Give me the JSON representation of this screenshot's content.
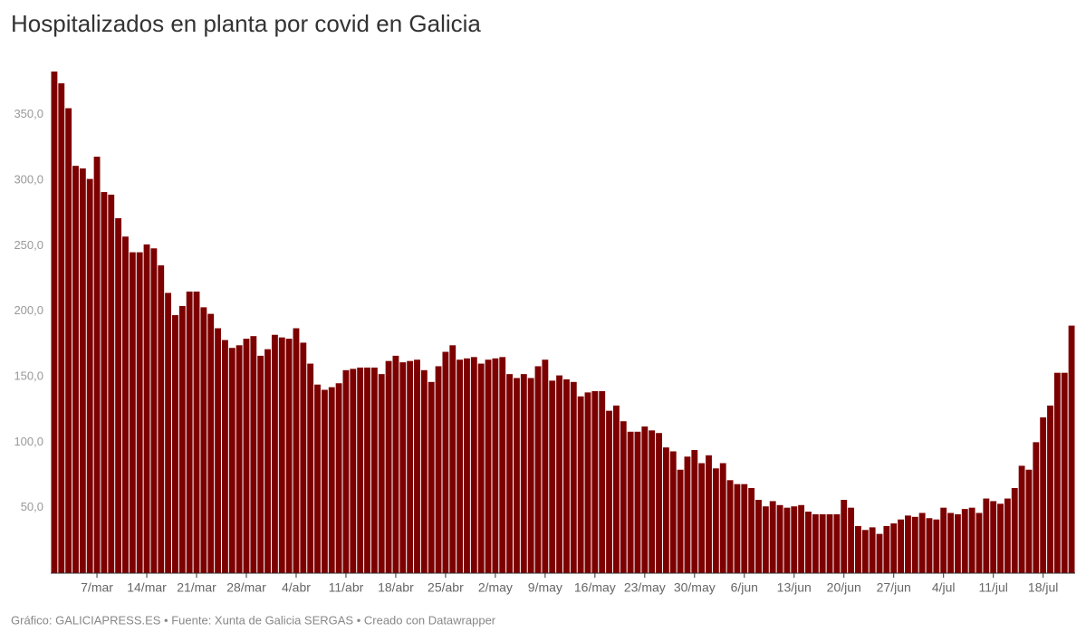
{
  "chart_data": {
    "type": "bar",
    "title": "Hospitalizados en planta por covid en Galicia",
    "source": "Gráfico: GALICIAPRESS.ES • Fuente: Xunta de Galicia SERGAS • Creado con Datawrapper",
    "color": "#7d0000",
    "categories": [
      null,
      null,
      null,
      null,
      null,
      null,
      "7/mar",
      null,
      null,
      null,
      null,
      null,
      null,
      "14/mar",
      null,
      null,
      null,
      null,
      null,
      null,
      "21/mar",
      null,
      null,
      null,
      null,
      null,
      null,
      "28/mar",
      null,
      null,
      null,
      null,
      null,
      null,
      "4/abr",
      null,
      null,
      null,
      null,
      null,
      null,
      "11/abr",
      null,
      null,
      null,
      null,
      null,
      null,
      "18/abr",
      null,
      null,
      null,
      null,
      null,
      null,
      "25/abr",
      null,
      null,
      null,
      null,
      null,
      null,
      "2/may",
      null,
      null,
      null,
      null,
      null,
      null,
      "9/may",
      null,
      null,
      null,
      null,
      null,
      null,
      "16/may",
      null,
      null,
      null,
      null,
      null,
      null,
      "23/may",
      null,
      null,
      null,
      null,
      null,
      null,
      "30/may",
      null,
      null,
      null,
      null,
      null,
      null,
      "6/jun",
      null,
      null,
      null,
      null,
      null,
      null,
      "13/jun",
      null,
      null,
      null,
      null,
      null,
      null,
      "20/jun",
      null,
      null,
      null,
      null,
      null,
      null,
      "27/jun",
      null,
      null,
      null,
      null,
      null,
      null,
      "4/jul",
      null,
      null,
      null,
      null,
      null,
      null,
      "11/jul",
      null,
      null,
      null,
      null,
      null,
      null,
      "18/jul",
      null,
      null,
      null,
      null
    ],
    "values": [
      383,
      374,
      355,
      311,
      309,
      301,
      318,
      291,
      289,
      271,
      257,
      245,
      245,
      251,
      248,
      235,
      214,
      197,
      204,
      215,
      215,
      203,
      198,
      187,
      178,
      172,
      174,
      179,
      181,
      166,
      171,
      182,
      180,
      179,
      187,
      176,
      160,
      144,
      140,
      142,
      145,
      155,
      156,
      157,
      157,
      157,
      152,
      162,
      166,
      161,
      162,
      163,
      155,
      146,
      158,
      169,
      174,
      163,
      164,
      165,
      160,
      163,
      164,
      165,
      152,
      149,
      152,
      149,
      158,
      163,
      147,
      151,
      148,
      146,
      135,
      138,
      139,
      139,
      124,
      128,
      116,
      108,
      108,
      112,
      109,
      107,
      96,
      93,
      79,
      89,
      94,
      84,
      90,
      80,
      84,
      71,
      68,
      68,
      65,
      56,
      51,
      55,
      52,
      50,
      51,
      52,
      47,
      45,
      45,
      45,
      45,
      56,
      50,
      36,
      33,
      35,
      30,
      36,
      38,
      41,
      44,
      43,
      46,
      42,
      41,
      50,
      46,
      45,
      49,
      50,
      46,
      57,
      55,
      53,
      57,
      65,
      82,
      79,
      100,
      119,
      128,
      153,
      153,
      189
    ],
    "ylim": [
      0,
      383
    ],
    "yticks": [
      {
        "value": 50,
        "label": "50,0"
      },
      {
        "value": 100,
        "label": "100,0"
      },
      {
        "value": 150,
        "label": "150,0"
      },
      {
        "value": 200,
        "label": "200,0"
      },
      {
        "value": 250,
        "label": "250,0"
      },
      {
        "value": 300,
        "label": "300,0"
      },
      {
        "value": 350,
        "label": "350,0"
      }
    ]
  }
}
